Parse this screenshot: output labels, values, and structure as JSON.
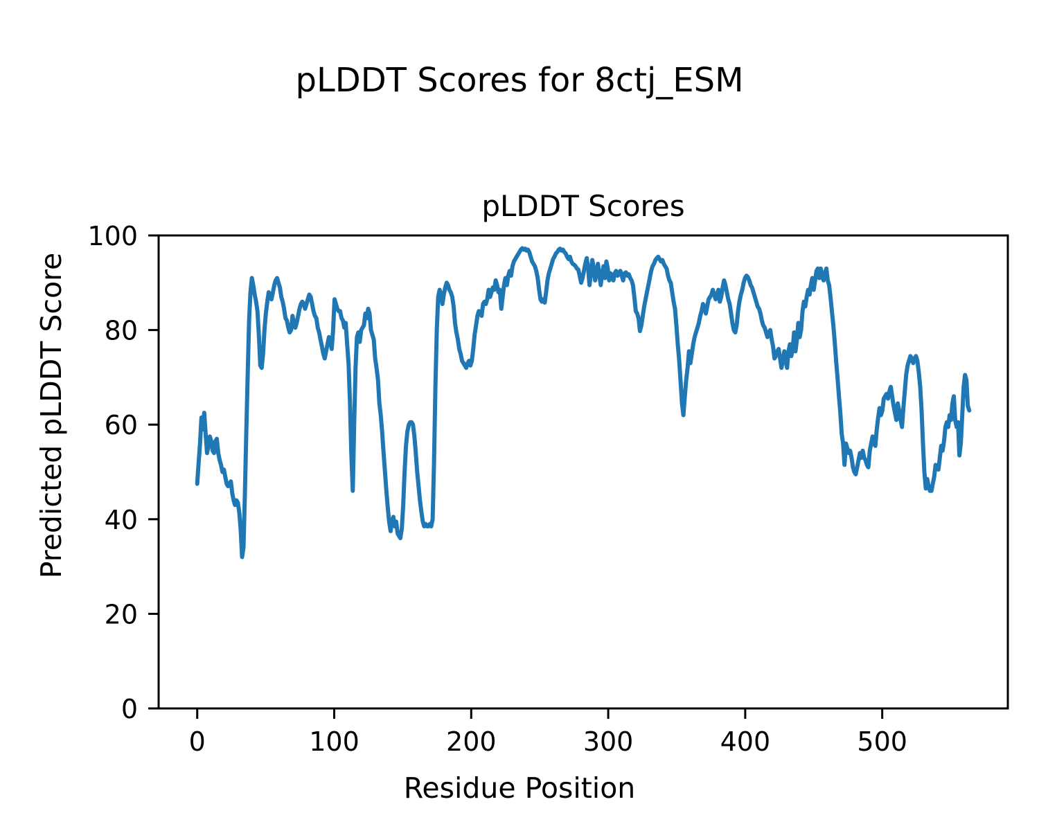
{
  "figure": {
    "suptitle": "pLDDT Scores for 8ctj_ESM",
    "background_color": "#ffffff",
    "spine_color": "#000000",
    "text_color": "#000000"
  },
  "chart_data": {
    "type": "line",
    "title": "pLDDT Scores",
    "xlabel": "Residue Position",
    "ylabel": "Predicted pLDDT Score",
    "series_name": "pLDDT",
    "line_color": "#1f77b4",
    "grid": false,
    "legend": "none",
    "ylim": [
      0,
      100
    ],
    "x_margin_frac": 0.05,
    "x_ticks": [
      0,
      100,
      200,
      300,
      400,
      500
    ],
    "x_tick_labels": [
      "0",
      "100",
      "200",
      "300",
      "400",
      "500"
    ],
    "y_ticks": [
      0,
      20,
      40,
      60,
      80,
      100
    ],
    "y_tick_labels": [
      "0",
      "20",
      "40",
      "60",
      "80",
      "100"
    ],
    "x0": 0,
    "dx": 1.0227,
    "values": [
      47.5,
      52,
      56,
      61.5,
      59,
      62.5,
      58,
      54,
      55.5,
      57.5,
      56.5,
      54.5,
      54,
      56.5,
      57,
      54,
      52.5,
      51.5,
      50,
      50.5,
      49,
      47.5,
      47,
      47.5,
      48,
      45.5,
      44,
      43,
      44,
      43.5,
      41.5,
      38,
      32,
      34,
      45,
      58,
      70,
      82,
      88,
      91,
      89.5,
      87.5,
      86,
      84,
      79,
      72.5,
      72,
      75,
      80,
      83.5,
      86,
      88,
      87.5,
      86.5,
      88,
      89.5,
      90.5,
      91,
      90,
      89,
      87,
      86,
      84.5,
      82.5,
      82,
      80.5,
      79.5,
      80,
      83,
      81.5,
      80.5,
      81.5,
      83,
      84.5,
      85.5,
      86,
      85.5,
      84.5,
      85.5,
      86.5,
      87.5,
      87,
      85.5,
      84,
      83,
      82.5,
      80.5,
      79.5,
      78,
      76.5,
      75,
      74,
      75.5,
      77,
      78.5,
      77.5,
      76,
      80,
      86.5,
      85.5,
      84.5,
      84,
      84,
      82.5,
      82,
      80.5,
      81.5,
      77,
      73,
      65,
      54,
      46,
      60,
      72,
      78.5,
      79.5,
      77.5,
      80,
      80.5,
      81,
      83.5,
      82.5,
      84.5,
      83.5,
      80,
      79,
      78,
      74,
      72,
      69.5,
      64.5,
      62,
      58.5,
      54,
      50,
      46,
      42.5,
      39.5,
      37.5,
      39.5,
      40.5,
      38.5,
      39.5,
      37,
      36.5,
      36,
      38,
      43,
      50,
      55.5,
      58.5,
      60,
      60.5,
      60.5,
      60,
      57.5,
      54,
      50,
      47,
      44,
      41.5,
      39.5,
      38.5,
      39,
      38.5,
      38.5,
      39,
      38.5,
      40,
      52,
      68,
      80,
      87,
      88.5,
      87.5,
      85.5,
      87.5,
      89,
      90,
      89.5,
      88.5,
      88,
      87,
      85,
      81.5,
      79.5,
      78,
      76,
      75,
      73.5,
      73,
      72.5,
      72,
      73,
      73.5,
      72.5,
      73.5,
      76,
      79,
      81,
      83,
      84,
      83.5,
      83,
      85.5,
      86,
      85.5,
      86.5,
      88.5,
      87,
      88,
      89,
      88.5,
      90.5,
      89.5,
      88,
      88.5,
      84.5,
      87,
      89.5,
      91,
      89.5,
      91.5,
      92.5,
      91.5,
      93.5,
      94.5,
      95,
      95.5,
      96,
      96.5,
      97,
      97.3,
      97,
      97.2,
      96.8,
      97,
      96.5,
      95.5,
      94.5,
      94,
      93.5,
      92.5,
      91,
      88.5,
      86.5,
      86,
      86.5,
      85.8,
      88,
      90.5,
      92,
      93,
      94,
      95,
      95.5,
      96.2,
      96.5,
      97,
      97.2,
      96.8,
      97,
      96.5,
      96.2,
      95.5,
      95,
      95.5,
      94.5,
      94,
      93.8,
      93.5,
      93,
      92.8,
      91.5,
      90,
      91,
      92.5,
      94,
      95.2,
      93,
      89.5,
      92,
      94.8,
      93,
      90.5,
      92.5,
      94,
      91.5,
      89.5,
      92,
      93.5,
      91,
      94.5,
      93,
      90.5,
      92,
      91.5,
      90.5,
      92,
      92.5,
      91.5,
      92,
      92.5,
      91.5,
      90.5,
      92,
      92.2,
      91.5,
      91.8,
      91,
      90.5,
      89.5,
      87,
      84,
      83.5,
      82.5,
      79.8,
      81,
      83,
      85,
      86.5,
      88,
      89.5,
      91,
      92.5,
      93.5,
      94,
      94.8,
      95.2,
      95.5,
      95,
      94.5,
      94.8,
      94,
      93.5,
      93,
      91.5,
      90.5,
      90,
      88,
      86,
      84.5,
      81,
      77,
      73.5,
      69,
      64.5,
      62,
      66,
      69.5,
      72,
      75.5,
      73,
      75,
      77,
      78.5,
      79.5,
      80.5,
      81.5,
      83,
      84,
      85.5,
      85,
      83.5,
      85,
      86.5,
      87,
      87.5,
      88.5,
      87.5,
      86.5,
      87.5,
      88.5,
      86,
      87,
      89,
      90.5,
      89.5,
      88,
      86.5,
      85.5,
      83.5,
      81.5,
      80,
      79.5,
      81,
      84,
      86,
      87.5,
      88.5,
      90,
      91,
      91.5,
      91.2,
      90.5,
      89.5,
      89,
      88,
      87,
      86,
      85,
      84.5,
      83.5,
      82,
      81,
      80.5,
      79.5,
      78.5,
      79.5,
      80,
      78,
      76.5,
      74,
      74.5,
      75.5,
      76,
      74,
      72,
      73.5,
      75.5,
      73.5,
      72,
      75.5,
      77,
      74.5,
      76,
      79.5,
      75.5,
      78,
      81.5,
      78.5,
      80,
      84,
      86,
      85,
      87,
      88.5,
      87.5,
      89.5,
      91,
      88.5,
      90.5,
      92.5,
      93,
      91,
      93,
      91.5,
      90.5,
      92,
      93,
      90.5,
      89.5,
      87,
      84,
      81,
      77.5,
      73.5,
      70,
      66,
      62.5,
      58,
      56,
      51.5,
      56,
      55,
      54,
      54.5,
      53,
      51,
      50,
      49.5,
      51,
      52.5,
      54,
      53,
      54.5,
      53,
      52.5,
      51.5,
      51,
      54.5,
      56,
      57.5,
      56,
      55.5,
      59,
      61.5,
      63.5,
      62,
      63,
      65.5,
      66,
      66.5,
      65.5,
      67,
      68,
      66,
      64,
      62.5,
      61,
      64.5,
      63,
      61,
      59.5,
      63.5,
      67,
      70.5,
      72.5,
      73.5,
      74.5,
      74,
      73,
      74,
      74.5,
      73.5,
      71,
      68,
      63,
      56,
      50,
      46.5,
      48.5,
      47,
      46,
      46,
      47.5,
      49,
      51.5,
      51,
      50.5,
      53,
      55.5,
      54.5,
      56.5,
      59.5,
      60.5,
      59.5,
      62,
      61,
      64.5,
      66,
      61,
      59.5,
      60.5,
      53.5,
      56,
      62,
      68,
      70.5,
      69.5,
      64,
      63
    ]
  }
}
